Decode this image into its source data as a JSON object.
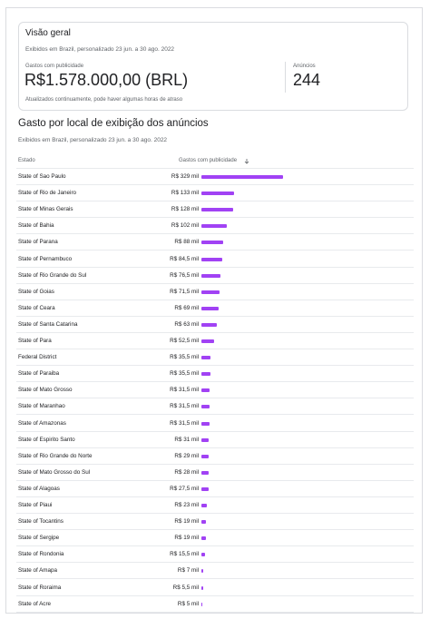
{
  "overview": {
    "title": "Visão geral",
    "subtitle": "Exibidos em Brazil, personalizado 23 jun. a 30 ago. 2022",
    "spend_label": "Gastos com publicidade",
    "spend_value": "R$1.578.000,00 (BRL)",
    "ads_label": "Anúncios",
    "ads_value": "244",
    "note": "Atualizados continuamente, pode haver algumas horas de atraso"
  },
  "locations": {
    "title": "Gasto por local de exibição dos anúncios",
    "subtitle": "Exibidos em Brazil, personalizado 23 jun. a 30 ago. 2022",
    "header": {
      "state": "Estado",
      "spend": "Gastos com publicidade"
    },
    "rows": [
      {
        "state": "State of Sao Paulo",
        "spend": {
          "value": 329,
          "label": "R$ 329 mil"
        }
      },
      {
        "state": "State of Rio de Janeiro",
        "spend": {
          "value": 133,
          "label": "R$ 133 mil"
        }
      },
      {
        "state": "State of Minas Gerais",
        "spend": {
          "value": 128,
          "label": "R$ 128 mil"
        }
      },
      {
        "state": "State of Bahia",
        "spend": {
          "value": 102,
          "label": "R$ 102 mil"
        }
      },
      {
        "state": "State of Parana",
        "spend": {
          "value": 88,
          "label": "R$ 88 mil"
        }
      },
      {
        "state": "State of Pernambuco",
        "spend": {
          "value": 84.5,
          "label": "R$ 84,5 mil"
        }
      },
      {
        "state": "State of Rio Grande do Sul",
        "spend": {
          "value": 76.5,
          "label": "R$ 76,5 mil"
        }
      },
      {
        "state": "State of Goias",
        "spend": {
          "value": 71.5,
          "label": "R$ 71,5 mil"
        }
      },
      {
        "state": "State of Ceara",
        "spend": {
          "value": 69,
          "label": "R$ 69 mil"
        }
      },
      {
        "state": "State of Santa Catarina",
        "spend": {
          "value": 63,
          "label": "R$ 63 mil"
        }
      },
      {
        "state": "State of Para",
        "spend": {
          "value": 52.5,
          "label": "R$ 52,5 mil"
        }
      },
      {
        "state": "Federal District",
        "spend": {
          "value": 35.5,
          "label": "R$ 35,5 mil"
        }
      },
      {
        "state": "State of Paraiba",
        "spend": {
          "value": 35.5,
          "label": "R$ 35,5 mil"
        }
      },
      {
        "state": "State of Mato Grosso",
        "spend": {
          "value": 31.5,
          "label": "R$ 31,5 mil"
        }
      },
      {
        "state": "State of Maranhao",
        "spend": {
          "value": 31.5,
          "label": "R$ 31,5 mil"
        }
      },
      {
        "state": "State of Amazonas",
        "spend": {
          "value": 31.5,
          "label": "R$ 31,5 mil"
        }
      },
      {
        "state": "State of Espirito Santo",
        "spend": {
          "value": 31,
          "label": "R$ 31 mil"
        }
      },
      {
        "state": "State of Rio Grande do Norte",
        "spend": {
          "value": 29,
          "label": "R$ 29 mil"
        }
      },
      {
        "state": "State of Mato Grosso do Sul",
        "spend": {
          "value": 28,
          "label": "R$ 28 mil"
        }
      },
      {
        "state": "State of Alagoas",
        "spend": {
          "value": 27.5,
          "label": "R$ 27,5 mil"
        }
      },
      {
        "state": "State of Piaui",
        "spend": {
          "value": 23,
          "label": "R$ 23 mil"
        }
      },
      {
        "state": "State of Tocantins",
        "spend": {
          "value": 19,
          "label": "R$ 19 mil"
        }
      },
      {
        "state": "State of Sergipe",
        "spend": {
          "value": 19,
          "label": "R$ 19 mil"
        }
      },
      {
        "state": "State of Rondonia",
        "spend": {
          "value": 15.5,
          "label": "R$ 15,5 mil"
        }
      },
      {
        "state": "State of Amapa",
        "spend": {
          "value": 7,
          "label": "R$ 7 mil"
        }
      },
      {
        "state": "State of Roraima",
        "spend": {
          "value": 5.5,
          "label": "R$ 5,5 mil"
        }
      },
      {
        "state": "State of Acre",
        "spend": {
          "value": 5,
          "label": "R$ 5 mil"
        }
      }
    ]
  }
}
